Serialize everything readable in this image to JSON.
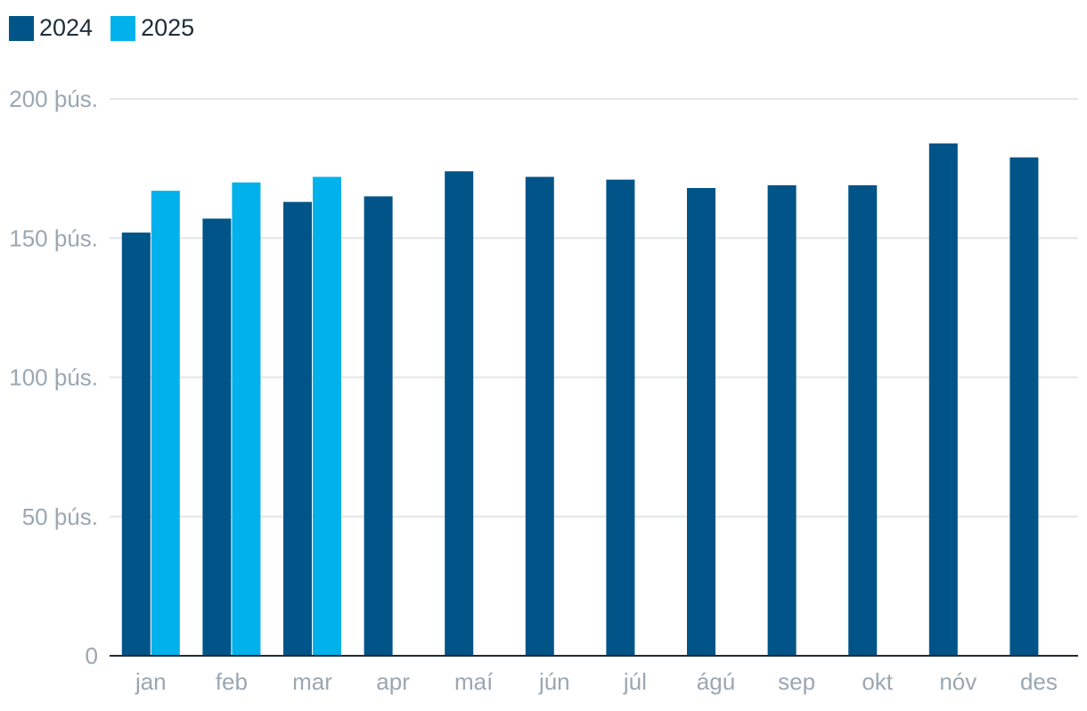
{
  "chart_data": {
    "type": "bar",
    "categories": [
      "jan",
      "feb",
      "mar",
      "apr",
      "maí",
      "jún",
      "júl",
      "ágú",
      "sep",
      "okt",
      "nóv",
      "des"
    ],
    "series": [
      {
        "name": "2024",
        "color": "#005488",
        "values": [
          152,
          157,
          163,
          165,
          174,
          172,
          171,
          168,
          169,
          169,
          184,
          179
        ]
      },
      {
        "name": "2025",
        "color": "#00b1eb",
        "values": [
          167,
          170,
          172,
          null,
          null,
          null,
          null,
          null,
          null,
          null,
          null,
          null
        ]
      }
    ],
    "ylim": [
      0,
      200
    ],
    "yticks": [
      {
        "value": 0,
        "label": "0"
      },
      {
        "value": 50,
        "label": "50 þús."
      },
      {
        "value": 100,
        "label": "100 þús."
      },
      {
        "value": 150,
        "label": "150 þús."
      },
      {
        "value": 200,
        "label": "200 þús."
      }
    ],
    "grid": true,
    "legend_position": "top-left",
    "gridline_color": "#e3e6e8",
    "axis_color": "#1f2d3a"
  }
}
